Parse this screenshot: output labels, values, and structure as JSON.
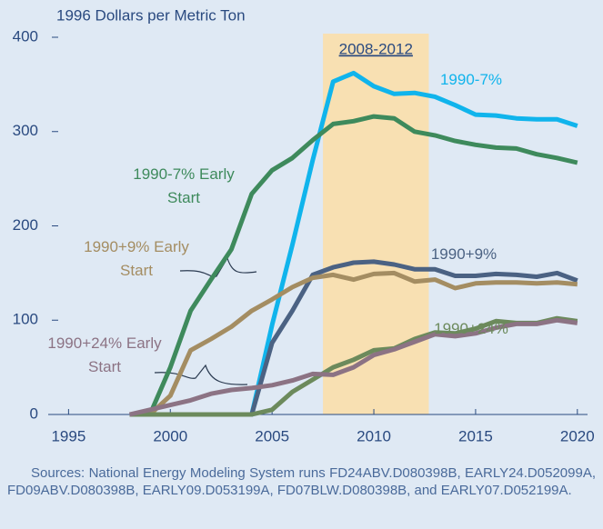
{
  "chart_data": {
    "type": "line",
    "y_label": "1996 Dollars per Metric Ton",
    "x": [
      1998,
      1999,
      2000,
      2001,
      2002,
      2003,
      2004,
      2005,
      2006,
      2007,
      2008,
      2009,
      2010,
      2011,
      2012,
      2013,
      2014,
      2015,
      2016,
      2017,
      2018,
      2019,
      2020
    ],
    "series": [
      {
        "name": "1990-7%",
        "color": "#10b4ec",
        "values": [
          0,
          0,
          0,
          0,
          0,
          0,
          0,
          95,
          180,
          270,
          353,
          362,
          348,
          340,
          341,
          337,
          328,
          318,
          317,
          314,
          313,
          313,
          306
        ]
      },
      {
        "name": "1990-7% Early Start",
        "color": "#3e8a5c",
        "values": [
          0,
          0,
          50,
          110,
          143,
          175,
          234,
          259,
          272,
          291,
          308,
          311,
          316,
          314,
          300,
          296,
          290,
          286,
          283,
          282,
          276,
          272,
          267
        ]
      },
      {
        "name": "1990+9%",
        "color": "#4b6283",
        "values": [
          0,
          0,
          0,
          0,
          0,
          0,
          0,
          76,
          110,
          148,
          156,
          161,
          162,
          159,
          154,
          154,
          147,
          147,
          149,
          148,
          146,
          150,
          142
        ]
      },
      {
        "name": "1990+9% Early Start",
        "color": "#a48d62",
        "values": [
          0,
          0,
          20,
          68,
          80,
          93,
          110,
          122,
          135,
          145,
          148,
          143,
          149,
          150,
          141,
          143,
          134,
          139,
          140,
          140,
          139,
          140,
          138
        ]
      },
      {
        "name": "1990+24%",
        "color": "#6c8a5c",
        "values": [
          0,
          0,
          0,
          0,
          0,
          0,
          0,
          5,
          24,
          37,
          50,
          58,
          68,
          70,
          80,
          87,
          86,
          91,
          99,
          97,
          97,
          102,
          99
        ]
      },
      {
        "name": "1990+24% Early Start",
        "color": "#8c7384",
        "values": [
          0,
          5,
          10,
          15,
          22,
          26,
          28,
          31,
          36,
          43,
          42,
          50,
          63,
          69,
          77,
          85,
          83,
          86,
          92,
          96,
          96,
          100,
          97
        ]
      }
    ],
    "highlight": {
      "label": "2008-2012",
      "from": 2007.5,
      "to": 2012.7,
      "color": "#f8e0b2"
    },
    "xlim": [
      1994,
      2020.5
    ],
    "xticks": [
      1995,
      2000,
      2005,
      2010,
      2015,
      2020
    ],
    "ylim": [
      0,
      400
    ],
    "yticks": [
      0,
      100,
      200,
      300,
      400
    ],
    "source": "Sources: National Energy Modeling System runs FD24ABV.D080398B, EARLY24.D052099A, FD09ABV.D080398B, EARLY09.D053199A, FD07BLW.D080398B, and EARLY07.D052199A."
  }
}
